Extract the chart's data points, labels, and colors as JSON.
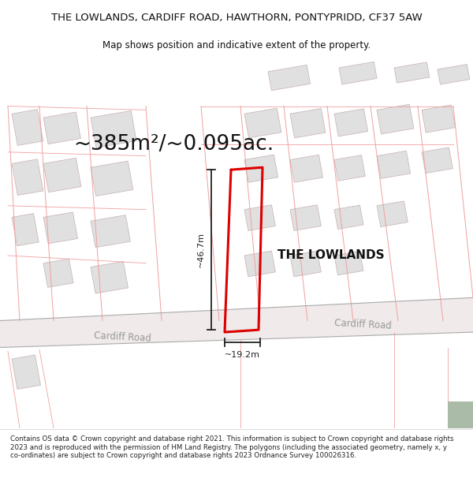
{
  "title_line1": "THE LOWLANDS, CARDIFF ROAD, HAWTHORN, PONTYPRIDD, CF37 5AW",
  "title_line2": "Map shows position and indicative extent of the property.",
  "area_text": "~385m²/~0.095ac.",
  "property_label": "THE LOWLANDS",
  "dim_vertical": "~46.7m",
  "dim_horizontal": "~19.2m",
  "road_label1": "Cardiff Road",
  "road_label2": "Cardiff Road",
  "footer_text": "Contains OS data © Crown copyright and database right 2021. This information is subject to Crown copyright and database rights 2023 and is reproduced with the permission of HM Land Registry. The polygons (including the associated geometry, namely x, y co-ordinates) are subject to Crown copyright and database rights 2023 Ordnance Survey 100026316.",
  "bg_color": "#ffffff",
  "cadastral_line_color": "#f0a0a0",
  "road_fill": "#f0e8e8",
  "road_line_color": "#c8a8a8",
  "building_fill": "#e0e0e0",
  "building_edge": "#c8b0b0",
  "property_outline_color": "#dd0000",
  "dim_line_color": "#222222",
  "green_fill": "#aabba8",
  "title_fontsize": 9.5,
  "subtitle_fontsize": 8.5,
  "area_fontsize": 19,
  "label_fontsize": 11,
  "road_fontsize": 8.5,
  "footer_fontsize": 6.2
}
